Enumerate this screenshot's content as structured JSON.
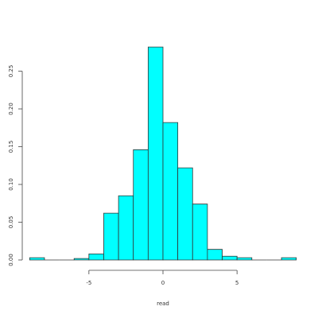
{
  "chart_data": {
    "type": "histogram",
    "x_label": "read",
    "bins": [
      -9,
      -8,
      -7,
      -6,
      -5,
      -4,
      -3,
      -2,
      -1,
      0,
      1,
      2,
      3,
      4,
      5,
      6,
      7,
      8,
      9
    ],
    "values": [
      0.003,
      0,
      0,
      0.002,
      0.008,
      0.062,
      0.085,
      0.146,
      0.282,
      0.182,
      0.122,
      0.074,
      0.014,
      0.005,
      0.003,
      0,
      0,
      0.003
    ],
    "color": "#00ffff",
    "xlim": [
      -9.5,
      9.5
    ],
    "xticks": [
      -5,
      0,
      5
    ],
    "ylim": [
      0,
      0.3
    ],
    "yticks": [
      {
        "value": 0,
        "label": "0.00"
      },
      {
        "value": 0.05,
        "label": "0.05"
      },
      {
        "value": 0.1,
        "label": "0.10"
      },
      {
        "value": 0.15,
        "label": "0.15"
      },
      {
        "value": 0.2,
        "label": "0.20"
      },
      {
        "value": 0.25,
        "label": "0.25"
      }
    ]
  }
}
